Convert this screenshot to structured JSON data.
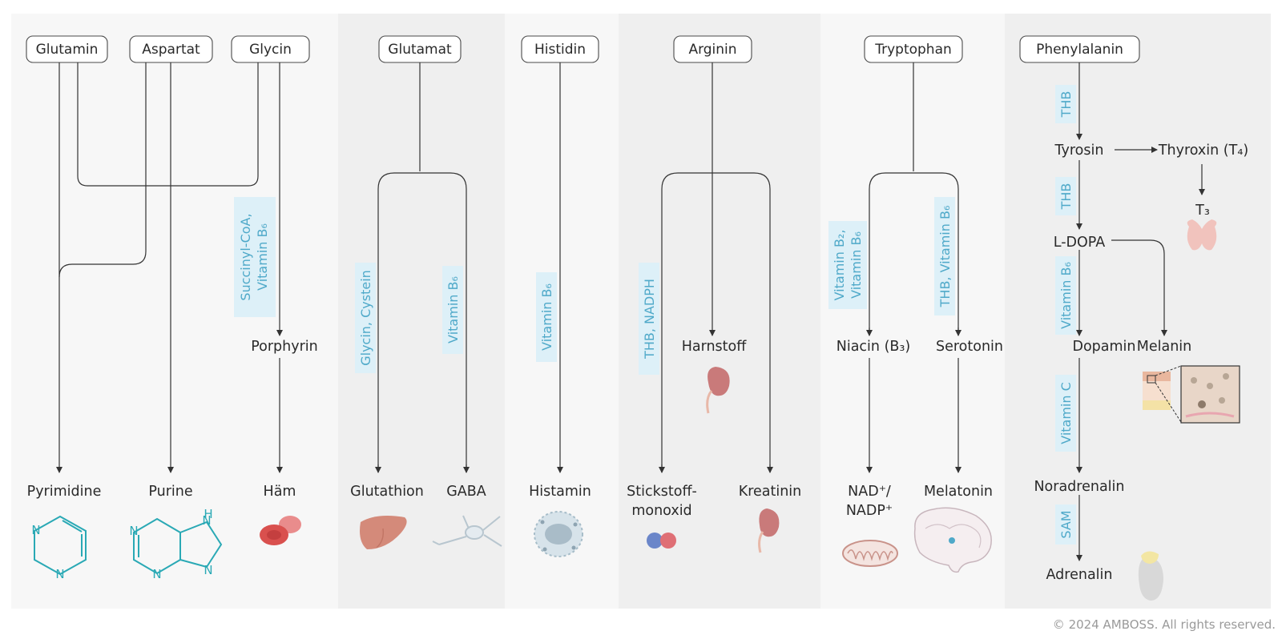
{
  "colors": {
    "panel_light": "#f7f7f7",
    "panel_dark": "#efefef",
    "cofactor_text": "#4fa9c9",
    "cofactor_bg": "#ddf0f8",
    "line": "#333333",
    "molecule": "#2aa9b5"
  },
  "sources": {
    "glutamin": "Glutamin",
    "aspartat": "Aspartat",
    "glycin": "Glycin",
    "glutamat": "Glutamat",
    "histidin": "Histidin",
    "arginin": "Arginin",
    "tryptophan": "Tryptophan",
    "phenylalanin": "Phenylalanin"
  },
  "products": {
    "pyrimidine": "Pyrimidine",
    "purine": "Purine",
    "porphyrin": "Porphyrin",
    "haem": "Häm",
    "glutathion": "Glutathion",
    "gaba": "GABA",
    "histamin": "Histamin",
    "stickstoffmonoxid_1": "Stickstoff-",
    "stickstoffmonoxid_2": "monoxid",
    "harnstoff": "Harnstoff",
    "kreatinin": "Kreatinin",
    "niacin": "Niacin (B₃)",
    "serotonin": "Serotonin",
    "nad_1": "NAD⁺/",
    "nad_2": "NADP⁺",
    "melatonin": "Melatonin",
    "tyrosin": "Tyrosin",
    "thyroxin": "Thyroxin (T₄)",
    "t3": "T₃",
    "ldopa": "L-DOPA",
    "dopamin": "Dopamin",
    "melanin": "Melanin",
    "noradrenalin": "Noradrenalin",
    "adrenalin": "Adrenalin"
  },
  "cofactors": {
    "succinyl_1": "Succinyl-CoA,",
    "succinyl_2": "Vitamin B₆",
    "glycin_cystein": "Glycin, Cystein",
    "vitamin_b6_gaba": "Vitamin B₆",
    "vitamin_b6_histamin": "Vitamin B₆",
    "thb_nadph": "THB, NADPH",
    "vit_b2_b6_1": "Vitamin B₂,",
    "vit_b2_b6_2": "Vitamin B₆",
    "thb_vit_b6": "THB, Vitamin B₆",
    "thb_1": "THB",
    "thb_2": "THB",
    "vitamin_b6_dopamin": "Vitamin B₆",
    "vitamin_c": "Vitamin C",
    "sam": "SAM"
  },
  "molecules": {
    "pyrimidine_n1": "N",
    "pyrimidine_n2": "N",
    "purine_n1": "N",
    "purine_n2": "N",
    "purine_n3": "N",
    "purine_n4": "N",
    "purine_h": "H"
  },
  "icons": {
    "rbc": "red-blood-cell-icon",
    "liver": "liver-icon",
    "neuron": "neuron-icon",
    "mast_cell": "mast-cell-icon",
    "no_molecule": "nitric-oxide-icon",
    "kidney": "kidney-icon",
    "mitochondrion": "mitochondrion-icon",
    "brain": "brain-icon",
    "thyroid": "thyroid-icon",
    "skin": "skin-icon",
    "adrenal": "adrenal-gland-icon"
  },
  "copyright": "© 2024 AMBOSS. All rights reserved."
}
